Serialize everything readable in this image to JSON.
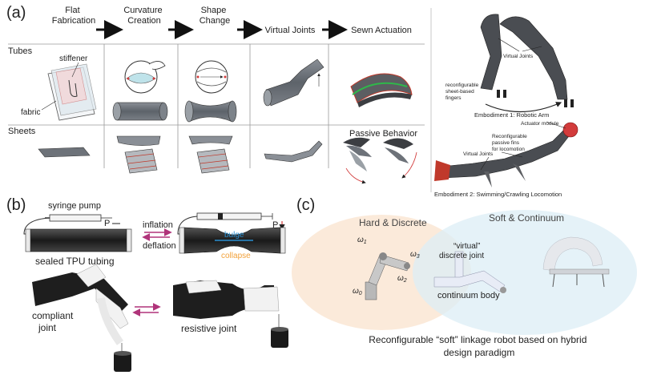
{
  "panel_a": {
    "label": "(a)",
    "steps": [
      "Flat\nFabrication",
      "Curvature\nCreation",
      "Shape\nChange",
      "Virtual Joints",
      "Sewn Actuation"
    ],
    "rows": [
      "Tubes",
      "Sheets"
    ],
    "stiffener": "stiffener",
    "fabric": "fabric",
    "passive_behavior": "Passive Behavior",
    "embodiment_1": {
      "virtual_joints": "Virtual Joints",
      "fingers": "reconfigurable\nsheet-based\nfingers",
      "title": "Embodiment 1: Robotic Arm"
    },
    "embodiment_2": {
      "actuator": "Actuator module",
      "fins": "Reconfigurable\npassive fins\nfor locomotion",
      "virtual_joints": "Virtual Joints",
      "title": "Embodiment 2: Swimming/Crawling Locomotion"
    }
  },
  "panel_b": {
    "label": "(b)",
    "syringe_pump": "syringe pump",
    "p_left": "P",
    "p_right": "P",
    "inflation": "inflation",
    "deflation": "deflation",
    "bulge": "bulge",
    "collapse": "collapse",
    "sealed": "sealed TPU tubing",
    "compliant": "compliant\njoint",
    "resistive": "resistive joint"
  },
  "panel_c": {
    "label": "(c)",
    "hard": "Hard & Discrete",
    "soft": "Soft & Continuum",
    "virtual": "“virtual”\ndiscrete joint",
    "continuum": "continuum body",
    "w0": "ω",
    "w0_sub": "0",
    "w1": "ω",
    "w1_sub": "1",
    "w2": "ω",
    "w2_sub": "2",
    "w3": "ω",
    "w3_sub": "3",
    "caption": "Reconfigurable “soft” linkage robot based on hybrid\ndesign paradigm"
  },
  "colors": {
    "arrow": "#111111",
    "bulge": "#2a8fd0",
    "collapse": "#f2a13a",
    "inflate_arrow": "#b0347a",
    "hard_bg": "#fbe8d6",
    "soft_bg": "#dcedf6",
    "tube_dark": "#2b2b2b",
    "accent_red": "#d23b3b",
    "accent_green": "#2fb84a"
  }
}
